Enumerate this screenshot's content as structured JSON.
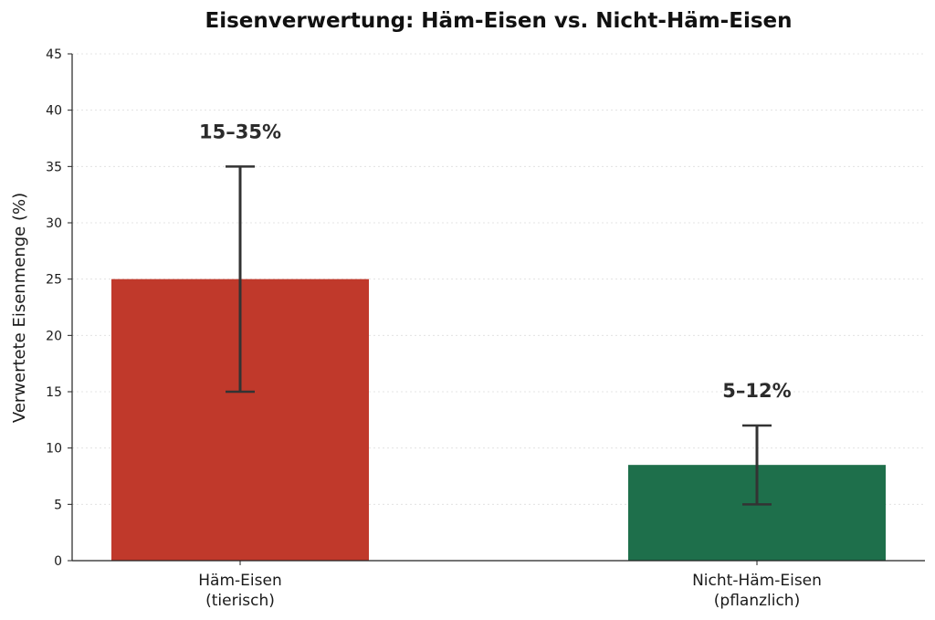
{
  "chart_data": {
    "type": "bar",
    "title": "Eisenverwertung: Häm-Eisen vs. Nicht-Häm-Eisen",
    "xlabel": "",
    "ylabel": "Verwertete Eisenmenge (%)",
    "ylim": [
      0,
      45
    ],
    "yticks": [
      0,
      5,
      10,
      15,
      20,
      25,
      30,
      35,
      40,
      45
    ],
    "grid": "y-dotted",
    "categories": [
      [
        "Häm-Eisen",
        "(tierisch)"
      ],
      [
        "Nicht-Häm-Eisen",
        "(pflanzlich)"
      ]
    ],
    "values": [
      25,
      8.5
    ],
    "error_low": [
      15,
      5
    ],
    "error_high": [
      35,
      12
    ],
    "data_labels": [
      "15–35%",
      "5–12%"
    ],
    "colors": [
      "#c0392b",
      "#1e6f4b"
    ]
  }
}
